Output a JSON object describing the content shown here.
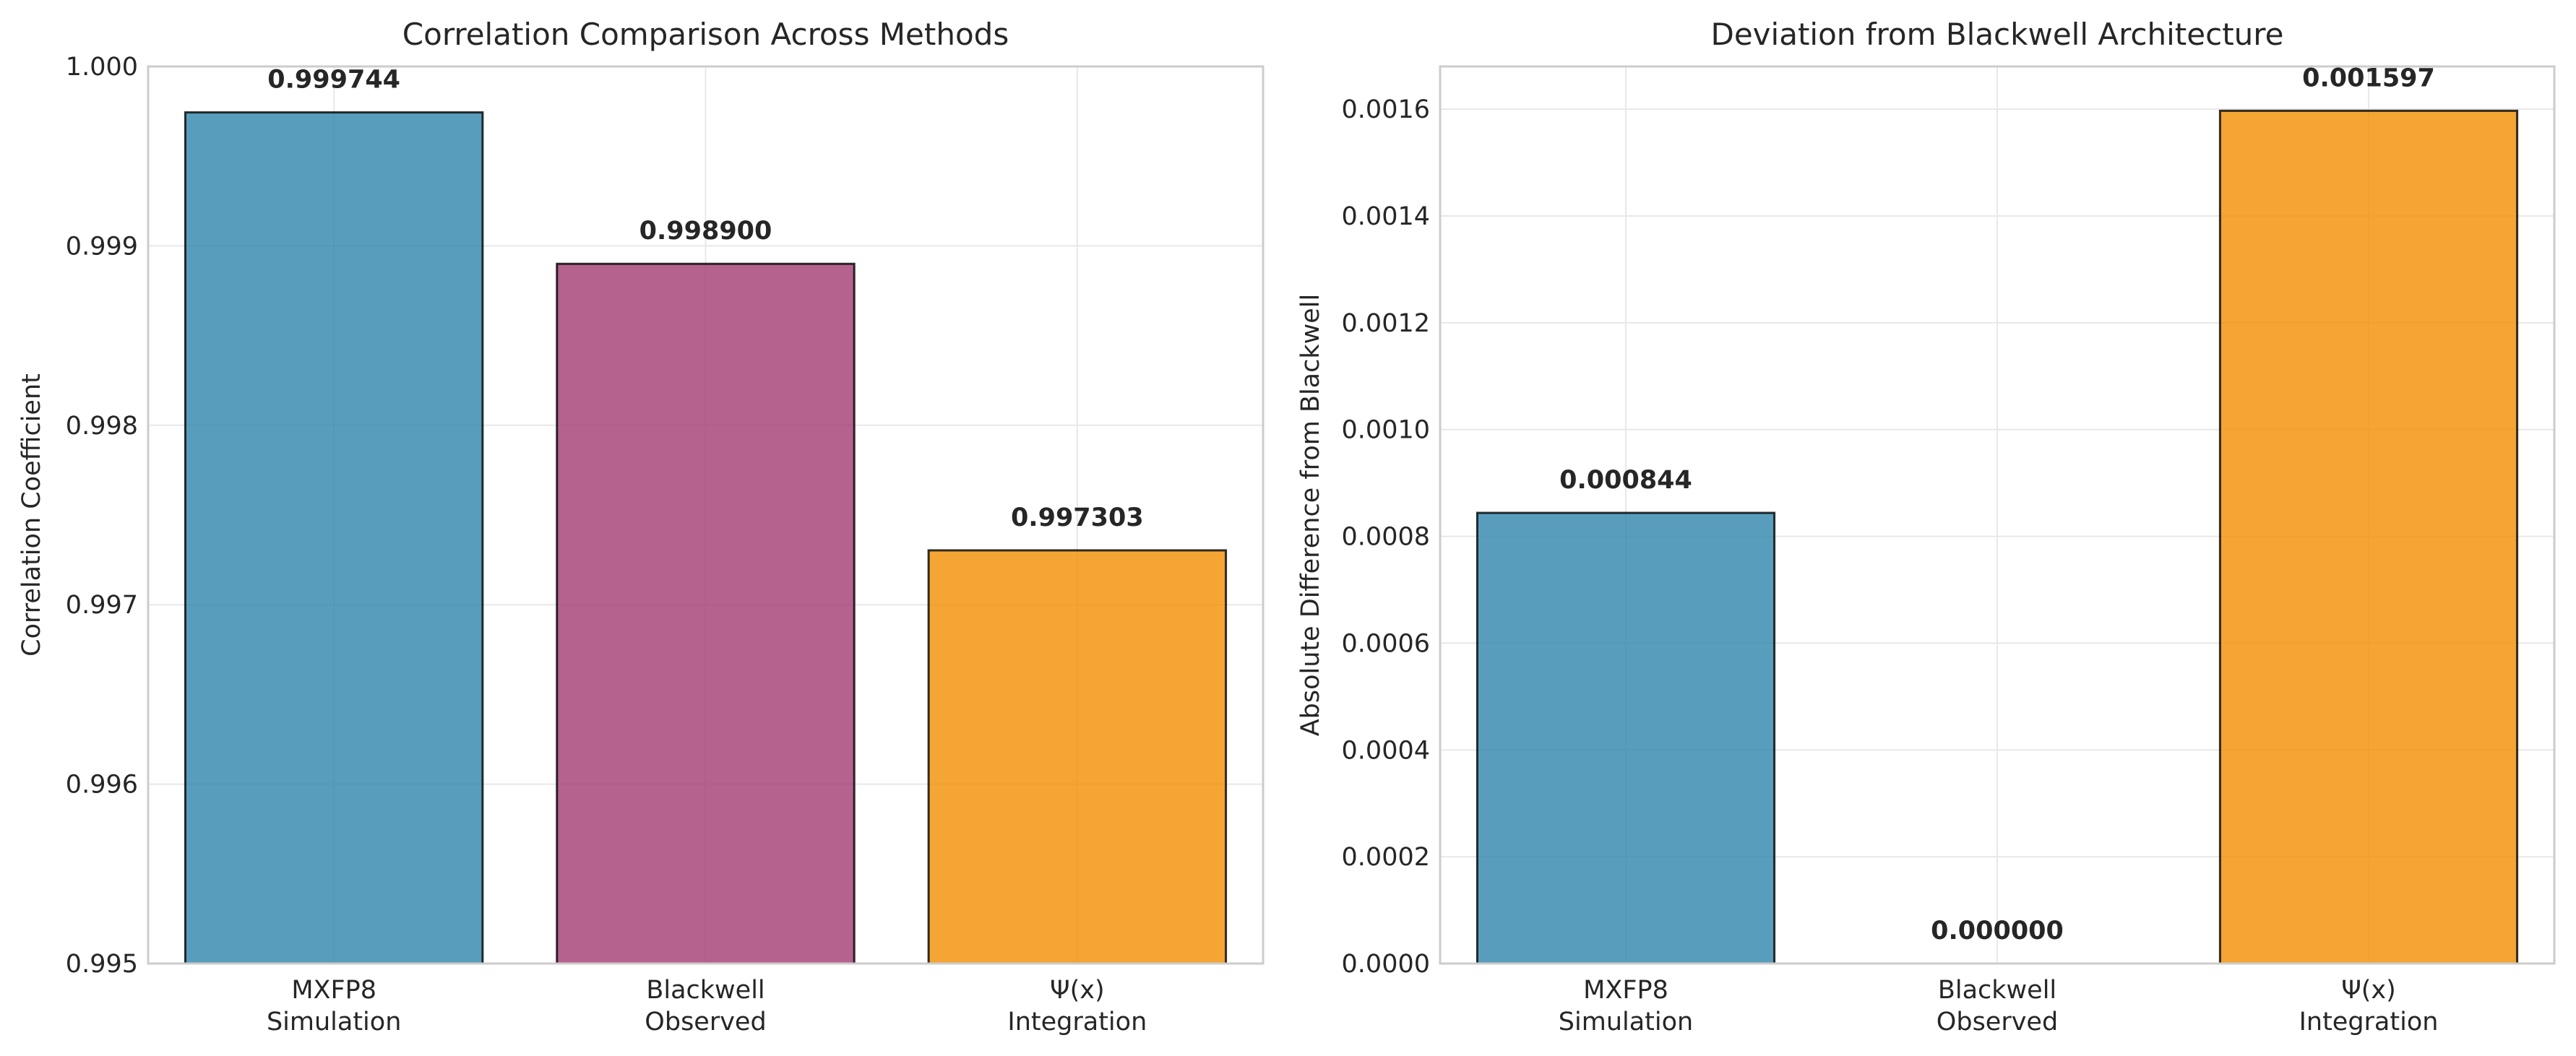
{
  "chart_data": [
    {
      "type": "bar",
      "title": "Correlation Comparison Across Methods",
      "xlabel": "",
      "ylabel": "Correlation Coefficient",
      "categories": [
        "MXFP8\nSimulation",
        "Blackwell\nObserved",
        "Ψ(x)\nIntegration"
      ],
      "values": [
        0.999744,
        0.9989,
        0.997303
      ],
      "data_labels": [
        "0.999744",
        "0.998900",
        "0.997303"
      ],
      "bar_colors": [
        "#2e86ab",
        "#a23b72",
        "#f18f01"
      ],
      "ylim": [
        0.995,
        1.0
      ],
      "yticks": [
        "0.995",
        "0.996",
        "0.997",
        "0.998",
        "0.999",
        "1.000"
      ],
      "grid": true
    },
    {
      "type": "bar",
      "title": "Deviation from Blackwell Architecture",
      "xlabel": "",
      "ylabel": "Absolute Difference from Blackwell",
      "categories": [
        "MXFP8\nSimulation",
        "Blackwell\nObserved",
        "Ψ(x)\nIntegration"
      ],
      "values": [
        0.000844,
        0.0,
        0.001597
      ],
      "data_labels": [
        "0.000844",
        "0.000000",
        "0.001597"
      ],
      "bar_colors": [
        "#2e86ab",
        "#a23b72",
        "#f18f01"
      ],
      "ylim": [
        0.0,
        0.00168
      ],
      "yticks": [
        "0.0000",
        "0.0002",
        "0.0004",
        "0.0006",
        "0.0008",
        "0.0010",
        "0.0012",
        "0.0014",
        "0.0016"
      ],
      "grid": true
    }
  ]
}
